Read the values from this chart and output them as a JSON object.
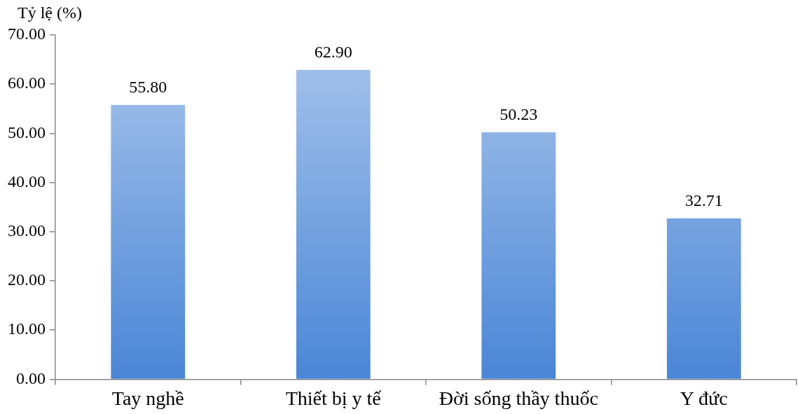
{
  "chart_data": {
    "type": "bar",
    "ylabel": "Tỷ lệ (%)",
    "categories": [
      "Tay nghề",
      "Thiết bị y tế",
      "Đời sống thầy thuốc",
      "Y đức"
    ],
    "values": [
      55.8,
      62.9,
      50.23,
      32.71
    ],
    "value_labels": [
      "55.80",
      "62.90",
      "50.23",
      "32.71"
    ],
    "color": "#4a86d6",
    "ylim": [
      0,
      70
    ],
    "yticks": [
      {
        "value": 0,
        "label": "0.00"
      },
      {
        "value": 10,
        "label": "10.00"
      },
      {
        "value": 20,
        "label": "20.00"
      },
      {
        "value": 30,
        "label": "30.00"
      },
      {
        "value": 40,
        "label": "40.00"
      },
      {
        "value": 50,
        "label": "50.00"
      },
      {
        "value": 60,
        "label": "60.00"
      },
      {
        "value": 70,
        "label": "70.00"
      }
    ],
    "grid": false,
    "legend": false
  }
}
